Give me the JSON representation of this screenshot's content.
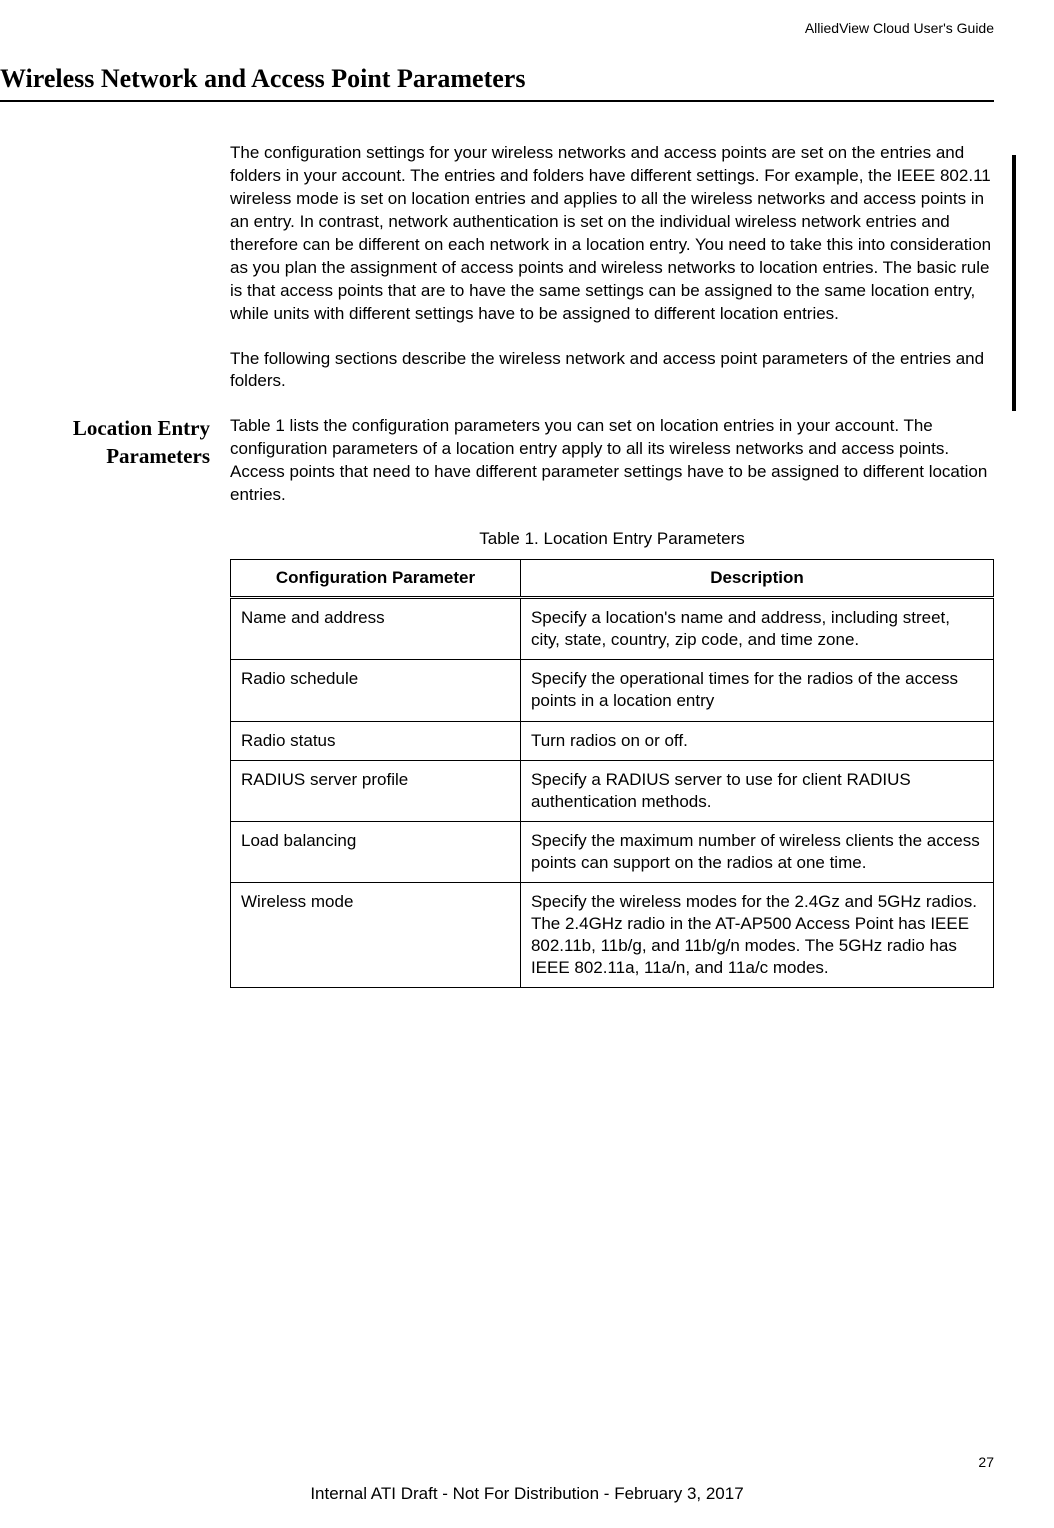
{
  "header": {
    "guide_title": "AlliedView Cloud User's Guide"
  },
  "section": {
    "title": "Wireless Network and Access Point Parameters"
  },
  "paragraphs": {
    "p1": "The configuration settings for your wireless networks and access points are set on the entries and folders in your account. The entries and folders have different settings. For example, the IEEE 802.11 wireless mode is set on location entries and applies to all the wireless networks and access points in an entry. In contrast, network authentication is set on the individual wireless network entries and therefore can be different on each network in a location entry. You need to take this into consideration as you plan the assignment of access points and wireless networks to location entries. The basic rule is that access points that are to have the same settings can be assigned to the same location entry, while units with different settings have to be assigned to different location entries.",
    "p2": "The following sections describe the wireless network and access point parameters of the entries and folders.",
    "p3": "Table 1 lists the configuration parameters you can set on location entries in your account. The configuration parameters of a location entry apply to all its wireless networks and access points. Access points that need to have different parameter settings have to be assigned to different location entries."
  },
  "subsection": {
    "label_line1": "Location Entry",
    "label_line2": "Parameters"
  },
  "table": {
    "caption": "Table 1. Location Entry Parameters",
    "headers": {
      "col1": "Configuration Parameter",
      "col2": "Description"
    },
    "rows": [
      {
        "param": "Name and address",
        "desc": "Specify a location's name and address, including street, city, state, country, zip code, and time zone."
      },
      {
        "param": "Radio schedule",
        "desc": "Specify the operational times for the radios of the access points in a location entry"
      },
      {
        "param": "Radio status",
        "desc": "Turn radios on or off."
      },
      {
        "param": "RADIUS server profile",
        "desc": "Specify a RADIUS server to use for client RADIUS authentication methods."
      },
      {
        "param": "Load balancing",
        "desc": "Specify the maximum number of wireless clients the access points can support on the radios at one time."
      },
      {
        "param": "Wireless mode",
        "desc": "Specify the wireless modes for the 2.4Gz and 5GHz radios. The 2.4GHz radio in the AT-AP500 Access Point has IEEE 802.11b, 11b/g, and 11b/g/n modes. The 5GHz radio has IEEE 802.11a, 11a/n, and 11a/c modes."
      }
    ]
  },
  "footer": {
    "page_number": "27",
    "draft_text": "Internal ATI Draft - Not For Distribution - February 3, 2017"
  }
}
